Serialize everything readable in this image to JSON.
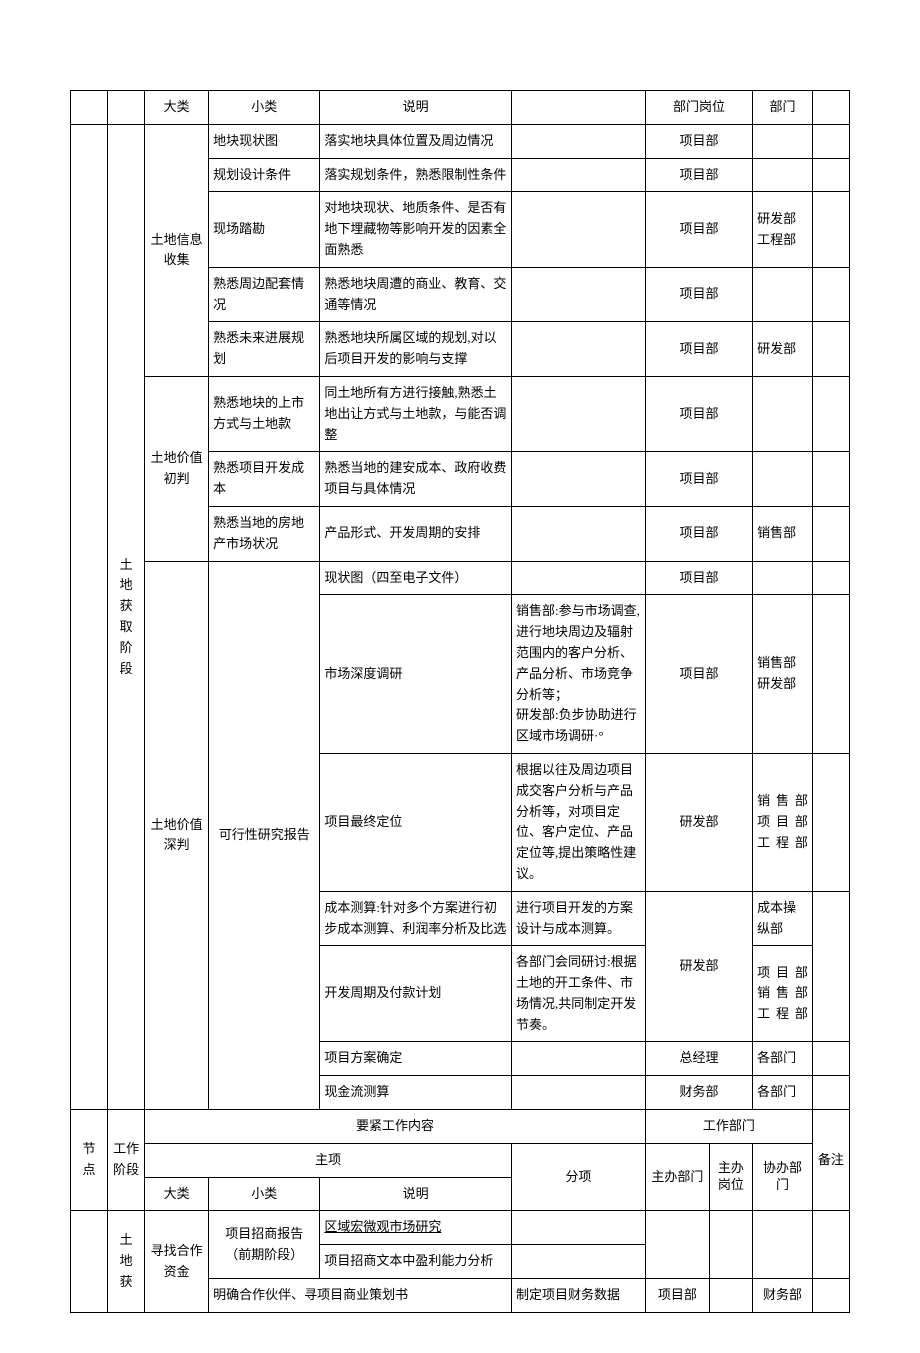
{
  "hdr1": {
    "c2": "大类",
    "c3": "小类",
    "c4": "说明",
    "c67": "部门岗位",
    "c8": "部门"
  },
  "phase1_label": "土地获取阶段",
  "g1_label": "土地信息收集",
  "g2_label": "土地价值初判",
  "g3_label": "土地价值深判",
  "rows": [
    {
      "c3": "地块现状图",
      "c4": "落实地块具体位置及周边情况",
      "c5": "",
      "c6": "项目部",
      "c8": ""
    },
    {
      "c3": "规划设计条件",
      "c4": "落实规划条件，熟悉限制性条件",
      "c5": "",
      "c6": "项目部",
      "c8": ""
    },
    {
      "c3": "现场踏勘",
      "c4": "对地块现状、地质条件、是否有地下埋藏物等影响开发的因素全面熟悉",
      "c5": "",
      "c6": "项目部",
      "c8": "研发部工程部"
    },
    {
      "c3": "熟悉周边配套情况",
      "c4": "熟悉地块周遭的商业、教育、交通等情况",
      "c5": "",
      "c6": "项目部",
      "c8": ""
    },
    {
      "c3": "熟悉未来进展规划",
      "c4": "熟悉地块所属区域的规划,对以后项目开发的影响与支撑",
      "c5": "",
      "c6": "项目部",
      "c8": "研发部"
    },
    {
      "c3": "熟悉地块的上市方式与土地款",
      "c4": "同土地所有方进行接触,熟悉土地出让方式与土地款，与能否调整",
      "c5": "",
      "c6": "项目部",
      "c8": ""
    },
    {
      "c3": "熟悉项目开发成本",
      "c4": "熟悉当地的建安成本、政府收费项目与具体情况",
      "c5": "",
      "c6": "项目部",
      "c8": ""
    },
    {
      "c3": "熟悉当地的房地产市场状况",
      "c4": "产品形式、开发周期的安排",
      "c5": "",
      "c6": "项目部",
      "c8": "销售部"
    },
    {
      "c3": "",
      "c4": "现状图（四至电子文件）",
      "c5": "",
      "c6": "项目部",
      "c8": ""
    },
    {
      "c3": "",
      "c4": "市场深度调研",
      "c5": "销售部:参与市场调查,进行地块周边及辐射范围内的客户分析、产品分析、市场竞争分析等；\n研发部:负步协助进行区域市场调研·°",
      "c6": "项目部",
      "c8": "销售部研发部"
    },
    {
      "c3": "",
      "c4": "项目最终定位",
      "c5": "根据以往及周边项目成交客户分析与产品分析等，对项目定位、客户定位、产品定位等,提出策略性建议。",
      "c6": "研发部",
      "c8": "销售部项目部工程部"
    },
    {
      "c3": "",
      "c4": "成本测算:针对多个方案进行初步成本测算、利润率分析及比选",
      "c5": "进行项目开发的方案设计与成本测算。",
      "c6": "",
      "c8": "成本操纵部"
    },
    {
      "c3": "",
      "c4": "开发周期及付款计划",
      "c5": "各部门会同研讨:根据土地的开工条件、市场情况,共同制定开发节奏。",
      "c6": "研发部",
      "c8": "项目部销售部工程部"
    },
    {
      "c3": "",
      "c4": "项目方案确定",
      "c5": "",
      "c6": "总经理",
      "c8": "各部门"
    },
    {
      "c3": "",
      "c4": "现金流测算",
      "c5": "",
      "c6": "财务部",
      "c8": "各部门"
    }
  ],
  "g3_sub_label": "可行性研究报告",
  "hdr2": {
    "node": "节点",
    "stage": "工作阶段",
    "main_work": "要紧工作内容",
    "work_dept": "工作部门",
    "remark": "备注",
    "main_item": "主项",
    "sub_item": "分项",
    "big": "大类",
    "small": "小类",
    "desc": "说明",
    "d1": "主办部门",
    "d2": "主办岗位",
    "d3": "协办部门"
  },
  "phase2_label": "土地获",
  "g4_label": "寻找合作资金",
  "bottom": {
    "r1_c3": "项目招商报告（前期阶段）",
    "r1_c4a": "区域宏微观市场研究",
    "r1_c4b": "项目招商文本中盈利能力分析",
    "r2_c3": "明确合作伙伴、寻项目商业策划书",
    "r2_c5": "制定项目财务数据",
    "r2_c6": "项目部",
    "r2_c8": "财务部"
  }
}
